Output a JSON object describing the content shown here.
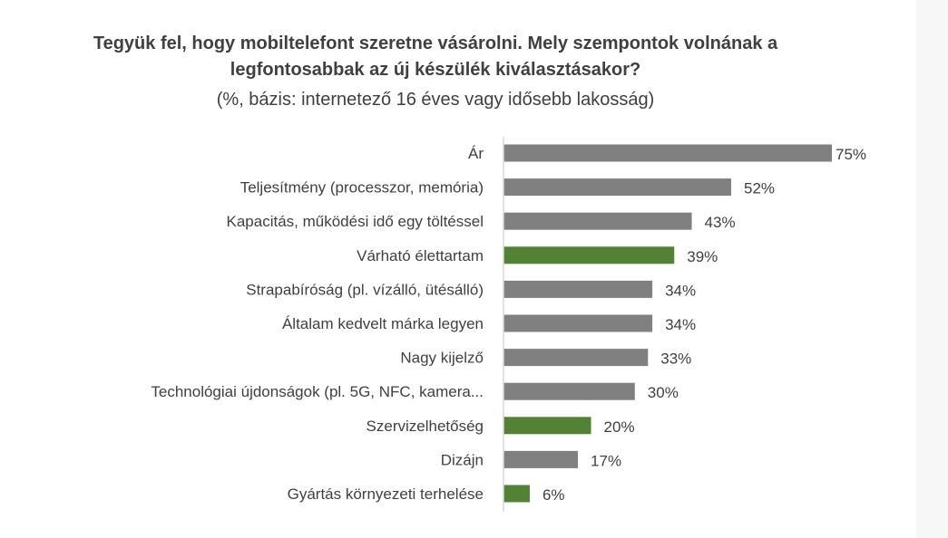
{
  "chart_data": {
    "type": "bar",
    "orientation": "horizontal",
    "title": "Tegyük fel, hogy mobiltelefont szeretne vásárolni. Mely szempontok volnának a legfontosabbak az új készülék kiválasztásakor?",
    "subtitle": "(%, bázis: internetező 16 éves vagy idősebb lakosság)",
    "xlabel": "",
    "ylabel": "",
    "xlim": [
      0,
      75
    ],
    "grid": false,
    "value_suffix": "%",
    "categories": [
      "Ár",
      "Teljesítmény (processzor, memória)",
      "Kapacitás, működési idő egy töltéssel",
      "Várható élettartam",
      "Strapabíróság (pl. vízálló, ütésálló)",
      "Általam kedvelt márka legyen",
      "Nagy kijelző",
      "Technológiai újdonságok (pl. 5G, NFC, kamera...",
      "Szervizelhetőség",
      "Dizájn",
      "Gyártás környezeti terhelése"
    ],
    "values": [
      75,
      52,
      43,
      39,
      34,
      34,
      33,
      30,
      20,
      17,
      6
    ],
    "highlighted": [
      false,
      false,
      false,
      true,
      false,
      false,
      false,
      false,
      true,
      false,
      true
    ],
    "colors": {
      "default": "#808080",
      "highlight": "#548235"
    }
  }
}
